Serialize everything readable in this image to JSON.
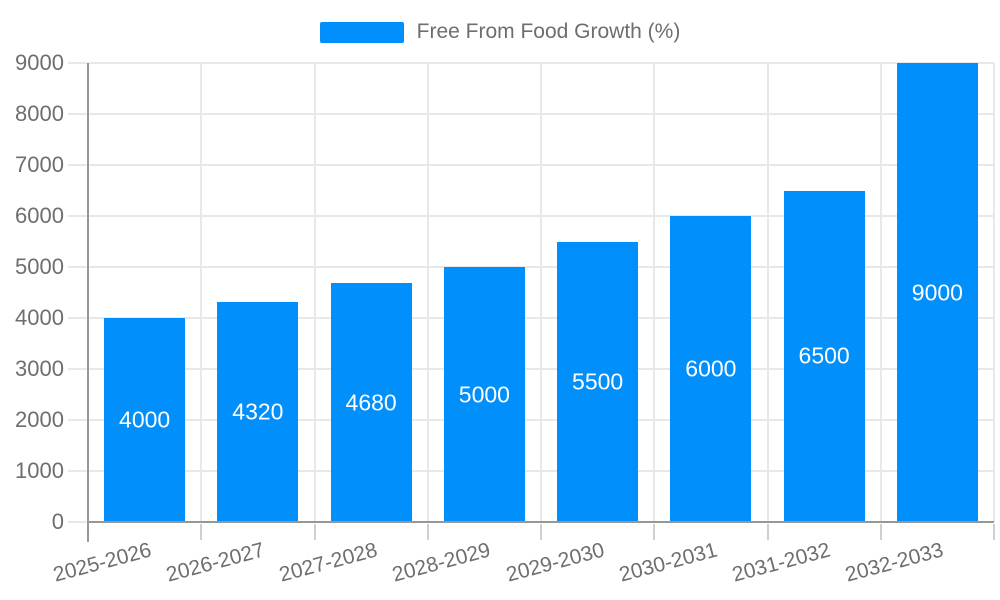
{
  "chart_data": {
    "type": "bar",
    "legend": "Free From Food Growth (%)",
    "legend_position": "top",
    "categories": [
      "2025-2026",
      "2026-2027",
      "2027-2028",
      "2028-2029",
      "2029-2030",
      "2030-2031",
      "2031-2032",
      "2032-2033"
    ],
    "values": [
      4000,
      4320,
      4680,
      5000,
      5500,
      6000,
      6500,
      9000
    ],
    "ylim": [
      0,
      9000
    ],
    "ytick_step": 1000,
    "ytick_labels": [
      "0",
      "1000",
      "2000",
      "3000",
      "4000",
      "5000",
      "6000",
      "7000",
      "8000",
      "9000"
    ],
    "grid": true,
    "value_labels": true,
    "colors": {
      "bar": "#008FFB",
      "value_label": "#ffffff",
      "grid": "#e8e8e8",
      "axis": "#979797",
      "tick": "#cfcfcf",
      "text": "#6e6e6e"
    }
  }
}
